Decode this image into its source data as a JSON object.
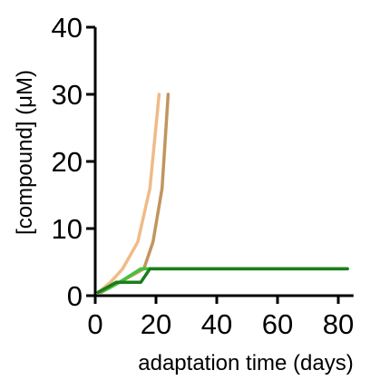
{
  "chart_data": {
    "type": "line",
    "title": "",
    "xlabel": "adaptation time (days)",
    "ylabel": "[compound] (μM)",
    "xlim": [
      0,
      90
    ],
    "ylim": [
      0,
      40
    ],
    "xticks": [
      0,
      20,
      40,
      60,
      80
    ],
    "yticks": [
      0,
      10,
      20,
      30,
      40
    ],
    "grid": false,
    "legend": "none",
    "series": [
      {
        "color": "#f0bb87",
        "x": [
          1,
          5,
          9,
          14,
          18,
          21
        ],
        "y": [
          0.5,
          2,
          4,
          8,
          16,
          30
        ]
      },
      {
        "color": "#c2955c",
        "x": [
          2,
          8,
          12,
          16,
          19,
          22,
          24
        ],
        "y": [
          0.5,
          2,
          3,
          4,
          8,
          16,
          30
        ]
      },
      {
        "color": "#45c23d",
        "x": [
          1,
          4,
          8,
          15,
          83
        ],
        "y": [
          0.5,
          1,
          2,
          4,
          4
        ]
      },
      {
        "color": "#1a7d1a",
        "x": [
          1,
          3,
          7,
          15,
          18,
          83
        ],
        "y": [
          0.5,
          1,
          2,
          2,
          4,
          4
        ]
      }
    ]
  }
}
